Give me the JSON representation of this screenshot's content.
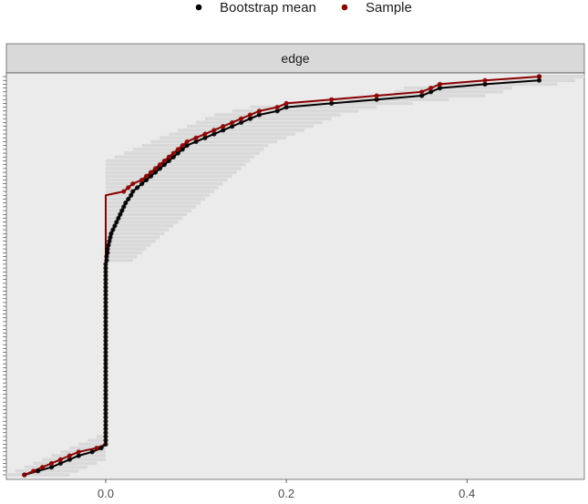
{
  "chart_data": {
    "type": "scatter",
    "facet_label": "edge",
    "legend": {
      "position": "top",
      "items": [
        {
          "label": "Bootstrap mean",
          "color": "#000000"
        },
        {
          "label": "Sample",
          "color": "#8b0000"
        }
      ]
    },
    "x_ticks": [
      "0.0",
      "0.2",
      "0.4"
    ],
    "x_tick_values": [
      0.0,
      0.2,
      0.4
    ],
    "xlim": [
      -0.11,
      0.53
    ],
    "n_edges": 105,
    "grid": false,
    "series": [
      {
        "name": "Sample",
        "color": "#8b0000",
        "values": [
          -0.09,
          -0.08,
          -0.07,
          -0.06,
          -0.05,
          -0.04,
          -0.03,
          -0.01,
          0.0,
          0.0,
          0.0,
          0.0,
          0.0,
          0.0,
          0.0,
          0.0,
          0.0,
          0.0,
          0.0,
          0.0,
          0.0,
          0.0,
          0.0,
          0.0,
          0.0,
          0.0,
          0.0,
          0.0,
          0.0,
          0.0,
          0.0,
          0.0,
          0.0,
          0.0,
          0.0,
          0.0,
          0.0,
          0.0,
          0.0,
          0.0,
          0.0,
          0.0,
          0.0,
          0.0,
          0.0,
          0.0,
          0.0,
          0.0,
          0.0,
          0.0,
          0.0,
          0.0,
          0.0,
          0.0,
          0.0,
          0.0,
          0.0,
          0.0,
          0.0,
          0.0,
          0.0,
          0.0,
          0.0,
          0.0,
          0.0,
          0.0,
          0.0,
          0.0,
          0.0,
          0.0,
          0.0,
          0.0,
          0.0,
          0.0,
          0.02,
          0.025,
          0.03,
          0.04,
          0.045,
          0.05,
          0.055,
          0.06,
          0.065,
          0.07,
          0.075,
          0.08,
          0.085,
          0.09,
          0.1,
          0.11,
          0.12,
          0.13,
          0.14,
          0.15,
          0.16,
          0.17,
          0.19,
          0.2,
          0.25,
          0.3,
          0.35,
          0.36,
          0.37,
          0.42,
          0.48
        ]
      },
      {
        "name": "Bootstrap mean",
        "color": "#000000",
        "values": [
          -0.09,
          -0.075,
          -0.06,
          -0.05,
          -0.04,
          -0.03,
          -0.015,
          -0.005,
          0.0,
          0.0,
          0.0,
          0.0,
          0.0,
          0.0,
          0.0,
          0.0,
          0.0,
          0.0,
          0.0,
          0.0,
          0.0,
          0.0,
          0.0,
          0.0,
          0.0,
          0.0,
          0.0,
          0.0,
          0.0,
          0.0,
          0.0,
          0.0,
          0.0,
          0.0,
          0.0,
          0.0,
          0.0,
          0.0,
          0.0,
          0.0,
          0.0,
          0.0,
          0.0,
          0.0,
          0.0,
          0.0,
          0.0,
          0.0,
          0.0,
          0.0,
          0.0,
          0.0,
          0.0,
          0.0,
          0.0,
          0.0,
          0.001,
          0.001,
          0.002,
          0.002,
          0.003,
          0.004,
          0.005,
          0.006,
          0.008,
          0.01,
          0.012,
          0.014,
          0.016,
          0.018,
          0.02,
          0.022,
          0.025,
          0.028,
          0.03,
          0.035,
          0.04,
          0.045,
          0.05,
          0.055,
          0.06,
          0.065,
          0.07,
          0.075,
          0.08,
          0.085,
          0.09,
          0.1,
          0.11,
          0.12,
          0.13,
          0.14,
          0.15,
          0.16,
          0.17,
          0.19,
          0.2,
          0.25,
          0.3,
          0.35,
          0.36,
          0.37,
          0.42,
          0.48,
          0.48
        ]
      },
      {
        "name": "",
        "color": "#d9d9d9",
        "values_low": [
          -0.11,
          -0.1,
          -0.09,
          -0.08,
          -0.07,
          -0.06,
          -0.05,
          -0.04,
          -0.03,
          -0.02,
          -0.01,
          0.0,
          0.0,
          0.0,
          0.0,
          0.0,
          0.0,
          0.0,
          0.0,
          0.0,
          0.0,
          0.0,
          0.0,
          0.0,
          0.0,
          0.0,
          0.0,
          0.0,
          0.0,
          0.0,
          0.0,
          0.0,
          0.0,
          0.0,
          0.0,
          0.0,
          0.0,
          0.0,
          0.0,
          0.0,
          0.0,
          0.0,
          0.0,
          0.0,
          0.0,
          0.0,
          0.0,
          0.0,
          0.0,
          0.0,
          0.0,
          0.0,
          0.0,
          0.0,
          0.0,
          0.0,
          0.0,
          0.0,
          0.0,
          0.0,
          0.0,
          0.0,
          0.0,
          0.0,
          0.0,
          0.0,
          0.0,
          0.0,
          0.0,
          0.0,
          0.0,
          0.0,
          0.0,
          0.0,
          0.0,
          0.0,
          0.0,
          0.0,
          0.0,
          0.0,
          0.0,
          0.0,
          0.0,
          0.01,
          0.02,
          0.03,
          0.04,
          0.05,
          0.06,
          0.07,
          0.08,
          0.09,
          0.1,
          0.11,
          0.12,
          0.14,
          0.16,
          0.2,
          0.25,
          0.3,
          0.32,
          0.33,
          0.37,
          0.44,
          0.48
        ],
        "values_high": [
          -0.04,
          -0.03,
          -0.02,
          -0.01,
          0.0,
          0.0,
          0.0,
          0.0,
          0.0,
          0.0,
          0.0,
          0.0,
          0.0,
          0.0,
          0.0,
          0.0,
          0.0,
          0.0,
          0.0,
          0.0,
          0.0,
          0.0,
          0.0,
          0.0,
          0.0,
          0.0,
          0.0,
          0.0,
          0.0,
          0.0,
          0.0,
          0.0,
          0.0,
          0.0,
          0.0,
          0.0,
          0.0,
          0.0,
          0.0,
          0.0,
          0.0,
          0.0,
          0.0,
          0.0,
          0.0,
          0.0,
          0.0,
          0.0,
          0.0,
          0.0,
          0.0,
          0.0,
          0.0,
          0.0,
          0.0,
          0.0,
          0.03,
          0.035,
          0.04,
          0.045,
          0.05,
          0.055,
          0.06,
          0.065,
          0.07,
          0.075,
          0.08,
          0.085,
          0.09,
          0.095,
          0.1,
          0.105,
          0.11,
          0.115,
          0.12,
          0.125,
          0.13,
          0.135,
          0.14,
          0.145,
          0.15,
          0.155,
          0.16,
          0.165,
          0.17,
          0.175,
          0.18,
          0.19,
          0.2,
          0.21,
          0.22,
          0.23,
          0.24,
          0.25,
          0.26,
          0.28,
          0.3,
          0.34,
          0.38,
          0.42,
          0.44,
          0.45,
          0.5,
          0.52,
          0.53
        ]
      }
    ]
  }
}
